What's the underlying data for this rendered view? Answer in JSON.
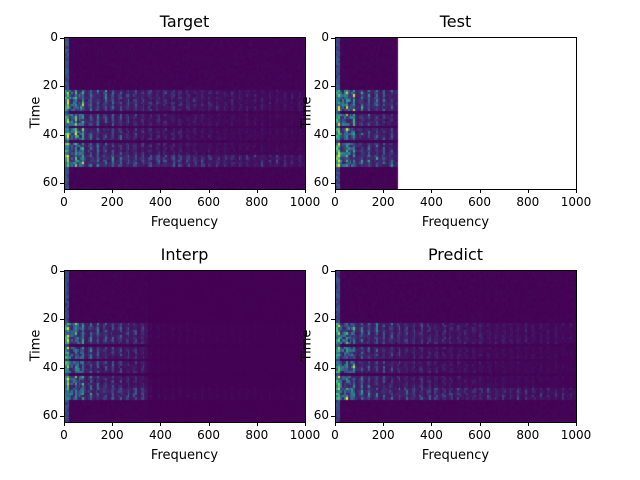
{
  "chart_data": [
    {
      "type": "heatmap",
      "title": "Target",
      "xlabel": "Frequency",
      "ylabel": "Time",
      "xlim": [
        0,
        1000
      ],
      "ylim": [
        62.5,
        -0.5
      ],
      "xticks": [
        0,
        200,
        400,
        600,
        800,
        1000
      ],
      "yticks": [
        0,
        20,
        40,
        60
      ],
      "colormap": "viridis",
      "data_extent_freq": 1000,
      "strength": 1.0,
      "active_time_bands": [
        [
          22,
          30
        ],
        [
          32,
          36
        ],
        [
          38,
          42
        ],
        [
          44,
          48
        ],
        [
          49,
          53
        ]
      ]
    },
    {
      "type": "heatmap",
      "title": "Test",
      "xlabel": "Frequency",
      "ylabel": "Time",
      "xlim": [
        0,
        1000
      ],
      "ylim": [
        62.5,
        -0.5
      ],
      "xticks": [
        0,
        200,
        400,
        600,
        800,
        1000
      ],
      "yticks": [
        0,
        20,
        40,
        60
      ],
      "colormap": "viridis",
      "data_extent_freq": 256,
      "strength": 1.0,
      "active_time_bands": [
        [
          22,
          30
        ],
        [
          32,
          36
        ],
        [
          38,
          42
        ],
        [
          44,
          48
        ],
        [
          49,
          53
        ]
      ]
    },
    {
      "type": "heatmap",
      "title": "Interp",
      "xlabel": "Frequency",
      "ylabel": "Time",
      "xlim": [
        0,
        1000
      ],
      "ylim": [
        62.5,
        -0.5
      ],
      "xticks": [
        0,
        200,
        400,
        600,
        800,
        1000
      ],
      "yticks": [
        0,
        20,
        40,
        60
      ],
      "colormap": "viridis",
      "data_extent_freq": 1000,
      "fade_freq": 350,
      "strength": 0.85,
      "active_time_bands": [
        [
          22,
          30
        ],
        [
          32,
          36
        ],
        [
          38,
          42
        ],
        [
          44,
          48
        ],
        [
          49,
          53
        ]
      ]
    },
    {
      "type": "heatmap",
      "title": "Predict",
      "xlabel": "Frequency",
      "ylabel": "Time",
      "xlim": [
        0,
        1000
      ],
      "ylim": [
        62.5,
        -0.5
      ],
      "xticks": [
        0,
        200,
        400,
        600,
        800,
        1000
      ],
      "yticks": [
        0,
        20,
        40,
        60
      ],
      "colormap": "viridis",
      "data_extent_freq": 1000,
      "strength": 0.9,
      "active_time_bands": [
        [
          22,
          30
        ],
        [
          32,
          36
        ],
        [
          38,
          42
        ],
        [
          44,
          48
        ],
        [
          49,
          53
        ]
      ]
    }
  ]
}
